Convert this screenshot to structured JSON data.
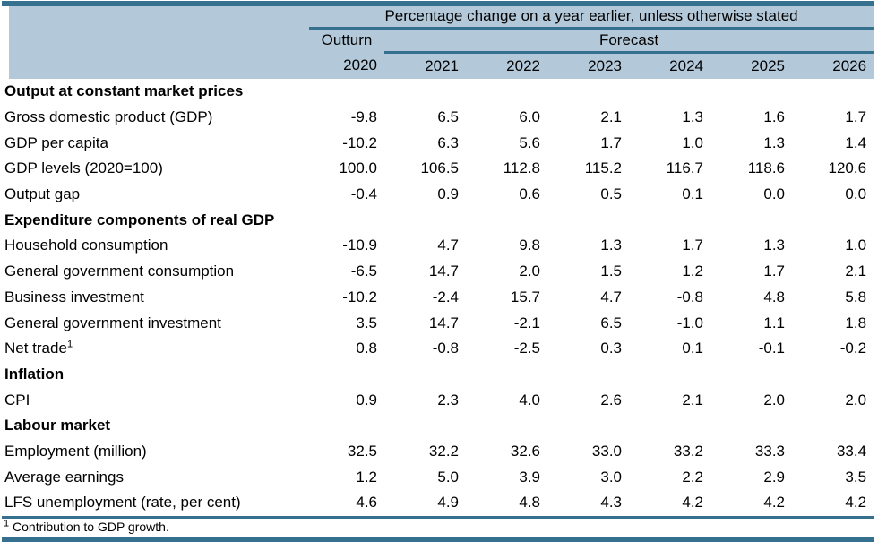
{
  "colors": {
    "accent_dark": "#35708e",
    "header_bg": "#b3c9da",
    "text": "#000000"
  },
  "header": {
    "span_title": "Percentage change on a year earlier, unless otherwise stated",
    "outturn_label": "Outturn",
    "forecast_label": "Forecast",
    "years": [
      "2020",
      "2021",
      "2022",
      "2023",
      "2024",
      "2025",
      "2026"
    ]
  },
  "rows": [
    {
      "type": "section",
      "label": "Output at constant market prices"
    },
    {
      "type": "data",
      "label": "Gross domestic product (GDP)",
      "values": [
        "-9.8",
        "6.5",
        "6.0",
        "2.1",
        "1.3",
        "1.6",
        "1.7"
      ]
    },
    {
      "type": "data",
      "label": "GDP per capita",
      "values": [
        "-10.2",
        "6.3",
        "5.6",
        "1.7",
        "1.0",
        "1.3",
        "1.4"
      ]
    },
    {
      "type": "data",
      "label": "GDP levels (2020=100)",
      "values": [
        "100.0",
        "106.5",
        "112.8",
        "115.2",
        "116.7",
        "118.6",
        "120.6"
      ]
    },
    {
      "type": "data",
      "label": "Output gap",
      "values": [
        "-0.4",
        "0.9",
        "0.6",
        "0.5",
        "0.1",
        "0.0",
        "0.0"
      ]
    },
    {
      "type": "section",
      "label": "Expenditure components of real GDP"
    },
    {
      "type": "data",
      "label": "Household consumption",
      "values": [
        "-10.9",
        "4.7",
        "9.8",
        "1.3",
        "1.7",
        "1.3",
        "1.0"
      ]
    },
    {
      "type": "data",
      "label": "General government consumption",
      "values": [
        "-6.5",
        "14.7",
        "2.0",
        "1.5",
        "1.2",
        "1.7",
        "2.1"
      ]
    },
    {
      "type": "data",
      "label": "Business investment",
      "values": [
        "-10.2",
        "-2.4",
        "15.7",
        "4.7",
        "-0.8",
        "4.8",
        "5.8"
      ]
    },
    {
      "type": "data",
      "label": "General government investment",
      "values": [
        "3.5",
        "14.7",
        "-2.1",
        "6.5",
        "-1.0",
        "1.1",
        "1.8"
      ]
    },
    {
      "type": "data",
      "label": "Net trade",
      "sup": "1",
      "values": [
        "0.8",
        "-0.8",
        "-2.5",
        "0.3",
        "0.1",
        "-0.1",
        "-0.2"
      ]
    },
    {
      "type": "section",
      "label": "Inflation"
    },
    {
      "type": "data",
      "label": "CPI",
      "values": [
        "0.9",
        "2.3",
        "4.0",
        "2.6",
        "2.1",
        "2.0",
        "2.0"
      ]
    },
    {
      "type": "section",
      "label": "Labour market"
    },
    {
      "type": "data",
      "label": "Employment (million)",
      "values": [
        "32.5",
        "32.2",
        "32.6",
        "33.0",
        "33.2",
        "33.3",
        "33.4"
      ]
    },
    {
      "type": "data",
      "label": "Average earnings",
      "values": [
        "1.2",
        "5.0",
        "3.9",
        "3.0",
        "2.2",
        "2.9",
        "3.5"
      ]
    },
    {
      "type": "data",
      "label": "LFS unemployment (rate, per cent)",
      "values": [
        "4.6",
        "4.9",
        "4.8",
        "4.3",
        "4.2",
        "4.2",
        "4.2"
      ]
    }
  ],
  "footnote": {
    "marker": "1",
    "text": "Contribution to GDP growth."
  },
  "chart_data": {
    "type": "table",
    "title": "Percentage change on a year earlier, unless otherwise stated",
    "column_groups": [
      {
        "label": "Outturn",
        "columns": [
          "2020"
        ]
      },
      {
        "label": "Forecast",
        "columns": [
          "2021",
          "2022",
          "2023",
          "2024",
          "2025",
          "2026"
        ]
      }
    ],
    "columns": [
      "2020",
      "2021",
      "2022",
      "2023",
      "2024",
      "2025",
      "2026"
    ],
    "sections": [
      {
        "section": "Output at constant market prices",
        "rows": [
          {
            "label": "Gross domestic product (GDP)",
            "values": [
              -9.8,
              6.5,
              6.0,
              2.1,
              1.3,
              1.6,
              1.7
            ]
          },
          {
            "label": "GDP per capita",
            "values": [
              -10.2,
              6.3,
              5.6,
              1.7,
              1.0,
              1.3,
              1.4
            ]
          },
          {
            "label": "GDP levels (2020=100)",
            "values": [
              100.0,
              106.5,
              112.8,
              115.2,
              116.7,
              118.6,
              120.6
            ]
          },
          {
            "label": "Output gap",
            "values": [
              -0.4,
              0.9,
              0.6,
              0.5,
              0.1,
              0.0,
              0.0
            ]
          }
        ]
      },
      {
        "section": "Expenditure components of real GDP",
        "rows": [
          {
            "label": "Household consumption",
            "values": [
              -10.9,
              4.7,
              9.8,
              1.3,
              1.7,
              1.3,
              1.0
            ]
          },
          {
            "label": "General government consumption",
            "values": [
              -6.5,
              14.7,
              2.0,
              1.5,
              1.2,
              1.7,
              2.1
            ]
          },
          {
            "label": "Business investment",
            "values": [
              -10.2,
              -2.4,
              15.7,
              4.7,
              -0.8,
              4.8,
              5.8
            ]
          },
          {
            "label": "General government investment",
            "values": [
              3.5,
              14.7,
              -2.1,
              6.5,
              -1.0,
              1.1,
              1.8
            ]
          },
          {
            "label": "Net trade (footnote 1: contribution to GDP growth)",
            "values": [
              0.8,
              -0.8,
              -2.5,
              0.3,
              0.1,
              -0.1,
              -0.2
            ]
          }
        ]
      },
      {
        "section": "Inflation",
        "rows": [
          {
            "label": "CPI",
            "values": [
              0.9,
              2.3,
              4.0,
              2.6,
              2.1,
              2.0,
              2.0
            ]
          }
        ]
      },
      {
        "section": "Labour market",
        "rows": [
          {
            "label": "Employment (million)",
            "values": [
              32.5,
              32.2,
              32.6,
              33.0,
              33.2,
              33.3,
              33.4
            ]
          },
          {
            "label": "Average earnings",
            "values": [
              1.2,
              5.0,
              3.9,
              3.0,
              2.2,
              2.9,
              3.5
            ]
          },
          {
            "label": "LFS unemployment (rate, per cent)",
            "values": [
              4.6,
              4.9,
              4.8,
              4.3,
              4.2,
              4.2,
              4.2
            ]
          }
        ]
      }
    ],
    "footnote": "1 Contribution to GDP growth."
  }
}
